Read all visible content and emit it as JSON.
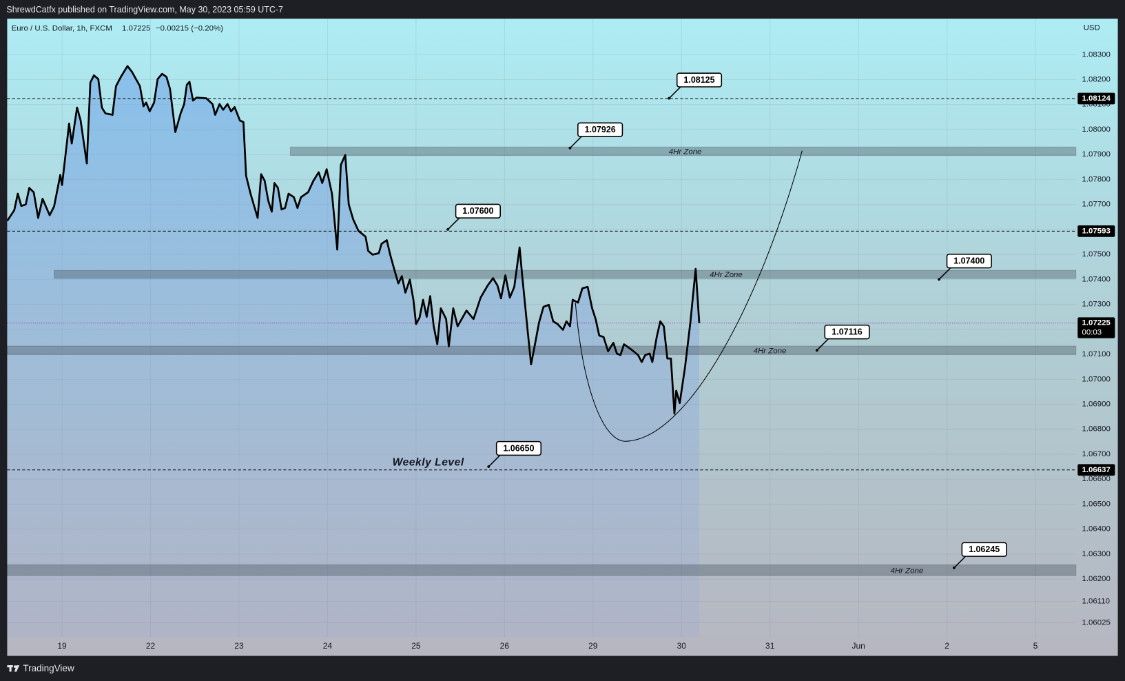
{
  "header": {
    "publisher": "ShrewdCatfx published on TradingView.com, May 30, 2023 05:59 UTC-7",
    "brand": "TradingView"
  },
  "chart_data": {
    "type": "line",
    "symbol": "Euro / U.S. Dollar, 1h, FXCM",
    "last": 1.07225,
    "change": "−0.00215 (−0.20%)",
    "currency": "USD",
    "countdown": "00:03",
    "color": "#000000",
    "grid": true,
    "xlim": [
      -0.62,
      11.46
    ],
    "ylim": [
      1.05967,
      1.08444
    ],
    "xticks": [
      {
        "value": 0,
        "label": "19"
      },
      {
        "value": 1,
        "label": "22"
      },
      {
        "value": 2,
        "label": "23"
      },
      {
        "value": 3,
        "label": "24"
      },
      {
        "value": 4,
        "label": "25"
      },
      {
        "value": 5,
        "label": "26"
      },
      {
        "value": 6,
        "label": "29"
      },
      {
        "value": 7,
        "label": "30"
      },
      {
        "value": 8,
        "label": "31"
      },
      {
        "value": 9,
        "label": "Jun"
      },
      {
        "value": 10,
        "label": "2"
      },
      {
        "value": 11,
        "label": "5"
      }
    ],
    "yticks": [
      {
        "value": 1.083,
        "label": "1.08300"
      },
      {
        "value": 1.082,
        "label": "1.08200"
      },
      {
        "value": 1.081,
        "label": "1.08100"
      },
      {
        "value": 1.08,
        "label": "1.08000"
      },
      {
        "value": 1.079,
        "label": "1.07900"
      },
      {
        "value": 1.078,
        "label": "1.07800"
      },
      {
        "value": 1.077,
        "label": "1.07700"
      },
      {
        "value": 1.076,
        "label": "1.07600"
      },
      {
        "value": 1.075,
        "label": "1.07500"
      },
      {
        "value": 1.074,
        "label": "1.07400"
      },
      {
        "value": 1.073,
        "label": "1.07300"
      },
      {
        "value": 1.072,
        "label": "1.07200"
      },
      {
        "value": 1.071,
        "label": "1.07100"
      },
      {
        "value": 1.07,
        "label": "1.07000"
      },
      {
        "value": 1.069,
        "label": "1.06900"
      },
      {
        "value": 1.068,
        "label": "1.06800"
      },
      {
        "value": 1.067,
        "label": "1.06700"
      },
      {
        "value": 1.066,
        "label": "1.06600"
      },
      {
        "value": 1.065,
        "label": "1.06500"
      },
      {
        "value": 1.064,
        "label": "1.06400"
      },
      {
        "value": 1.063,
        "label": "1.06300"
      },
      {
        "value": 1.062,
        "label": "1.06200"
      },
      {
        "value": 1.0611,
        "label": "1.06110"
      },
      {
        "value": 1.06025,
        "label": "1.06025"
      }
    ],
    "x": [
      -0.62,
      -0.54,
      -0.5,
      -0.46,
      -0.41,
      -0.37,
      -0.32,
      -0.27,
      -0.22,
      -0.14,
      -0.09,
      -0.02,
      0,
      0.08,
      0.11,
      0.17,
      0.21,
      0.28,
      0.32,
      0.36,
      0.41,
      0.45,
      0.49,
      0.57,
      0.61,
      0.67,
      0.74,
      0.79,
      0.88,
      0.92,
      0.95,
      0.99,
      1.04,
      1.08,
      1.13,
      1.18,
      1.22,
      1.28,
      1.34,
      1.38,
      1.41,
      1.44,
      1.48,
      1.52,
      1.63,
      1.7,
      1.73,
      1.78,
      1.82,
      1.87,
      1.91,
      1.95,
      2.01,
      2.05,
      2.08,
      2.13,
      2.21,
      2.25,
      2.29,
      2.33,
      2.37,
      2.4,
      2.44,
      2.48,
      2.52,
      2.56,
      2.62,
      2.66,
      2.7,
      2.78,
      2.84,
      2.9,
      2.94,
      2.99,
      3.05,
      3.11,
      3.15,
      3.2,
      3.24,
      3.29,
      3.35,
      3.43,
      3.46,
      3.51,
      3.58,
      3.61,
      3.67,
      3.71,
      3.76,
      3.8,
      3.84,
      3.88,
      3.93,
      3.97,
      4,
      4.04,
      4.08,
      4.12,
      4.16,
      4.2,
      4.24,
      4.28,
      4.34,
      4.37,
      4.42,
      4.47,
      4.57,
      4.65,
      4.73,
      4.81,
      4.87,
      4.92,
      4.96,
      5.01,
      5.06,
      5.11,
      5.17,
      5.2,
      5.26,
      5.3,
      5.34,
      5.39,
      5.44,
      5.5,
      5.55,
      5.6,
      5.66,
      5.7,
      5.74,
      5.77,
      5.83,
      5.88,
      5.94,
      5.99,
      6.03,
      6.07,
      6.12,
      6.17,
      6.23,
      6.27,
      6.31,
      6.35,
      6.43,
      6.51,
      6.55,
      6.59,
      6.64,
      6.67,
      6.72,
      6.76,
      6.8,
      6.84,
      6.88,
      6.92,
      6.94,
      6.98,
      7.04,
      7.1,
      7.16,
      7.2
    ],
    "values": [
      1.07634,
      1.07677,
      1.07743,
      1.07694,
      1.077,
      1.07766,
      1.07749,
      1.07646,
      1.07723,
      1.07657,
      1.07692,
      1.07818,
      1.07778,
      1.08024,
      1.07944,
      1.08088,
      1.08036,
      1.07864,
      1.08188,
      1.08217,
      1.08202,
      1.08088,
      1.08065,
      1.08059,
      1.08174,
      1.08214,
      1.08254,
      1.08231,
      1.08174,
      1.08093,
      1.08108,
      1.08073,
      1.08108,
      1.08202,
      1.08223,
      1.08211,
      1.08162,
      1.0799,
      1.08065,
      1.08102,
      1.08179,
      1.08191,
      1.08116,
      1.08128,
      1.08125,
      1.08102,
      1.08059,
      1.08102,
      1.08079,
      1.08102,
      1.08073,
      1.0809,
      1.08036,
      1.0803,
      1.07815,
      1.07743,
      1.07646,
      1.07821,
      1.07795,
      1.07715,
      1.07671,
      1.07786,
      1.07766,
      1.0768,
      1.07686,
      1.07743,
      1.07729,
      1.07686,
      1.07729,
      1.07749,
      1.07795,
      1.07829,
      1.07786,
      1.07841,
      1.07743,
      1.07519,
      1.07858,
      1.07898,
      1.077,
      1.0764,
      1.07594,
      1.07571,
      1.07514,
      1.07499,
      1.07505,
      1.07542,
      1.07557,
      1.07496,
      1.07433,
      1.07384,
      1.07413,
      1.07347,
      1.07399,
      1.07318,
      1.07221,
      1.07247,
      1.07318,
      1.0725,
      1.07333,
      1.07212,
      1.0714,
      1.07284,
      1.07241,
      1.07132,
      1.07284,
      1.07212,
      1.07275,
      1.07241,
      1.07327,
      1.07376,
      1.07405,
      1.07376,
      1.07324,
      1.07416,
      1.07327,
      1.0737,
      1.07528,
      1.07413,
      1.07198,
      1.0706,
      1.07132,
      1.07227,
      1.0729,
      1.07298,
      1.07232,
      1.07221,
      1.07198,
      1.07232,
      1.07212,
      1.07318,
      1.07307,
      1.07364,
      1.0737,
      1.07284,
      1.07241,
      1.07175,
      1.07169,
      1.07112,
      1.07146,
      1.07103,
      1.07097,
      1.0714,
      1.0712,
      1.07097,
      1.07069,
      1.07097,
      1.07103,
      1.07069,
      1.07169,
      1.07232,
      1.07212,
      1.07083,
      1.07083,
      1.06862,
      1.06954,
      1.06905,
      1.07049,
      1.07227,
      1.07442,
      1.07225
    ],
    "levels": [
      1.08124,
      1.07593,
      1.06637
    ],
    "zones": [
      {
        "label": "4Hr Zone",
        "low": 1.07896,
        "high": 1.0793,
        "start": 2.58
      },
      {
        "label": "4Hr Zone",
        "low": 1.07404,
        "high": 1.07436,
        "start": -0.09
      },
      {
        "label": "4Hr Zone",
        "low": 1.07099,
        "high": 1.07133,
        "start": -0.62
      },
      {
        "label": "4Hr Zone",
        "low": 1.06214,
        "high": 1.06257,
        "start": -0.62
      }
    ],
    "callouts": [
      1.08125,
      1.07926,
      {
        "value": 1.076,
        "label": "1.07600"
      },
      {
        "value": 1.074,
        "label": "1.07400"
      },
      1.07116,
      {
        "value": 1.0665,
        "label": "1.06650"
      },
      1.06245
    ],
    "annotation": "Weekly Level"
  }
}
